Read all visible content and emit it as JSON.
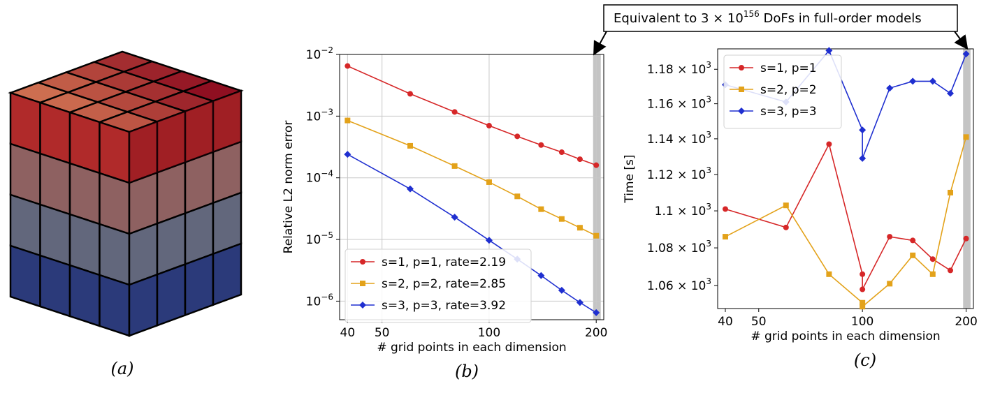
{
  "panel_labels": {
    "a": "(a)",
    "b": "(b)",
    "c": "(c)"
  },
  "callout": {
    "text": "Equivalent to 3 × 10",
    "sup": "156",
    "rest": " DoFs in full-order models"
  },
  "cube": {
    "top_color": "#b02a2a",
    "bottom_color": "#2b3a7a"
  },
  "chart_data": [
    {
      "type": "line",
      "panel": "b",
      "xscale": "log",
      "yscale": "log",
      "xlim": [
        38,
        210
      ],
      "ylim": [
        5e-07,
        0.01
      ],
      "xticks": [
        40,
        50,
        100,
        200
      ],
      "xtick_labels": [
        "40",
        "50",
        "100",
        "200"
      ],
      "yticks": [
        1e-06,
        1e-05,
        0.0001,
        0.001,
        0.01
      ],
      "ytick_labels": [
        [
          "10",
          "−6"
        ],
        [
          "10",
          "−5"
        ],
        [
          "10",
          "−4"
        ],
        [
          "10",
          "−3"
        ],
        [
          "10",
          "−2"
        ]
      ],
      "xlabel": "# grid points in each dimension",
      "ylabel": "Relative L2 norm error",
      "grid": true,
      "legend_position": "lower-left",
      "shaded_band_x": [
        196,
        206
      ],
      "x": [
        40,
        60,
        80,
        100,
        120,
        140,
        160,
        180,
        200
      ],
      "series": [
        {
          "name": "s=1, p=1, rate=2.19",
          "color": "#d62728",
          "marker": "circle",
          "values": [
            0.0065,
            0.0023,
            0.00117,
            0.0007,
            0.00047,
            0.00034,
            0.00026,
            0.0002,
            0.00016
          ]
        },
        {
          "name": "s=2, p=2, rate=2.85",
          "color": "#e3a21a",
          "marker": "square",
          "values": [
            0.00085,
            0.00033,
            0.000155,
            8.5e-05,
            5e-05,
            3.1e-05,
            2.15e-05,
            1.55e-05,
            1.15e-05
          ]
        },
        {
          "name": "s=3, p=3, rate=3.92",
          "color": "#1f2fd0",
          "marker": "diamond",
          "values": [
            0.00024,
            6.6e-05,
            2.3e-05,
            9.7e-06,
            4.8e-06,
            2.6e-06,
            1.5e-06,
            9.5e-07,
            6.5e-07
          ]
        }
      ]
    },
    {
      "type": "line",
      "panel": "c",
      "xscale": "log",
      "yscale": "log",
      "xlim": [
        38,
        210
      ],
      "ylim": [
        1048,
        1192
      ],
      "xticks": [
        40,
        50,
        100,
        200
      ],
      "xtick_labels": [
        "40",
        "50",
        "100",
        "200"
      ],
      "yticks": [
        1060,
        1080,
        1100,
        1120,
        1140,
        1160,
        1180
      ],
      "ytick_labels": [
        [
          "1.06 × 10",
          "3"
        ],
        [
          "1.08 × 10",
          "3"
        ],
        [
          "1.1 × 10",
          "3"
        ],
        [
          "1.12 × 10",
          "3"
        ],
        [
          "1.14 × 10",
          "3"
        ],
        [
          "1.16 × 10",
          "3"
        ],
        [
          "1.18 × 10",
          "3"
        ]
      ],
      "xlabel": "# grid points in each dimension",
      "ylabel": "Time [s]",
      "grid": false,
      "legend_position": "upper-left",
      "shaded_band_x": [
        196,
        206
      ],
      "series": [
        {
          "name": "s=1, p=1",
          "color": "#d62728",
          "marker": "circle",
          "x": [
            40,
            60,
            80,
            100,
            100,
            120,
            140,
            160,
            180,
            200
          ],
          "values": [
            1101,
            1091,
            1137,
            1066,
            1058,
            1086,
            1084,
            1074,
            1068,
            1085
          ]
        },
        {
          "name": "s=2, p=2",
          "color": "#e3a21a",
          "marker": "square",
          "x": [
            40,
            60,
            80,
            100,
            100,
            120,
            140,
            160,
            180,
            200
          ],
          "values": [
            1086,
            1103,
            1066,
            1051,
            1049,
            1061,
            1076,
            1066,
            1110,
            1141
          ]
        },
        {
          "name": "s=3, p=3",
          "color": "#1f2fd0",
          "marker": "diamond",
          "x": [
            40,
            60,
            80,
            100,
            100,
            120,
            140,
            160,
            180,
            200
          ],
          "values": [
            1171,
            1161,
            1191,
            1145,
            1129,
            1169,
            1173,
            1173,
            1166,
            1189
          ]
        }
      ]
    }
  ]
}
